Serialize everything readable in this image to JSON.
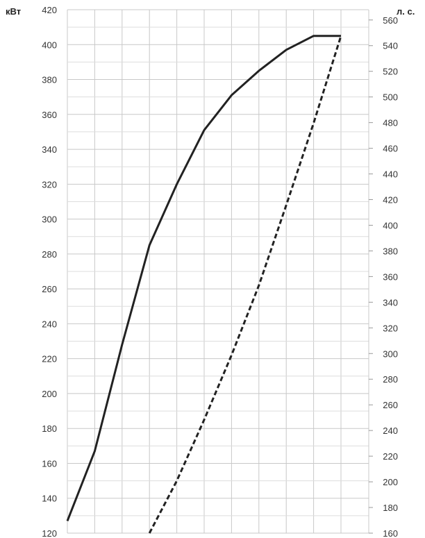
{
  "chart_data": {
    "type": "line",
    "title": "",
    "xlabel": "",
    "x_grid_count": 11,
    "grid": true,
    "y_left": {
      "unit_label": "кВт",
      "ylim": [
        120,
        420
      ],
      "ticks": [
        120,
        140,
        160,
        180,
        200,
        220,
        240,
        260,
        280,
        300,
        320,
        340,
        360,
        380,
        400,
        420
      ]
    },
    "y_right": {
      "unit_label": "л. с.",
      "ylim": [
        160,
        568
      ],
      "ticks": [
        160,
        180,
        200,
        220,
        240,
        260,
        280,
        300,
        320,
        340,
        360,
        380,
        400,
        420,
        440,
        460,
        480,
        500,
        520,
        540,
        560
      ]
    },
    "series": [
      {
        "style": "solid",
        "axis": "left",
        "color": "#222222",
        "x": [
          0,
          1,
          2,
          3,
          4,
          5,
          6,
          7,
          8,
          9,
          10
        ],
        "y": [
          127,
          167,
          228,
          285,
          320,
          351,
          371,
          385,
          397,
          405,
          405
        ]
      },
      {
        "style": "dashed",
        "axis": "left",
        "color": "#222222",
        "x": [
          3,
          4,
          5,
          6,
          7,
          8,
          9,
          10
        ],
        "y": [
          120,
          150,
          185,
          222,
          262,
          308,
          355,
          405
        ]
      }
    ]
  }
}
